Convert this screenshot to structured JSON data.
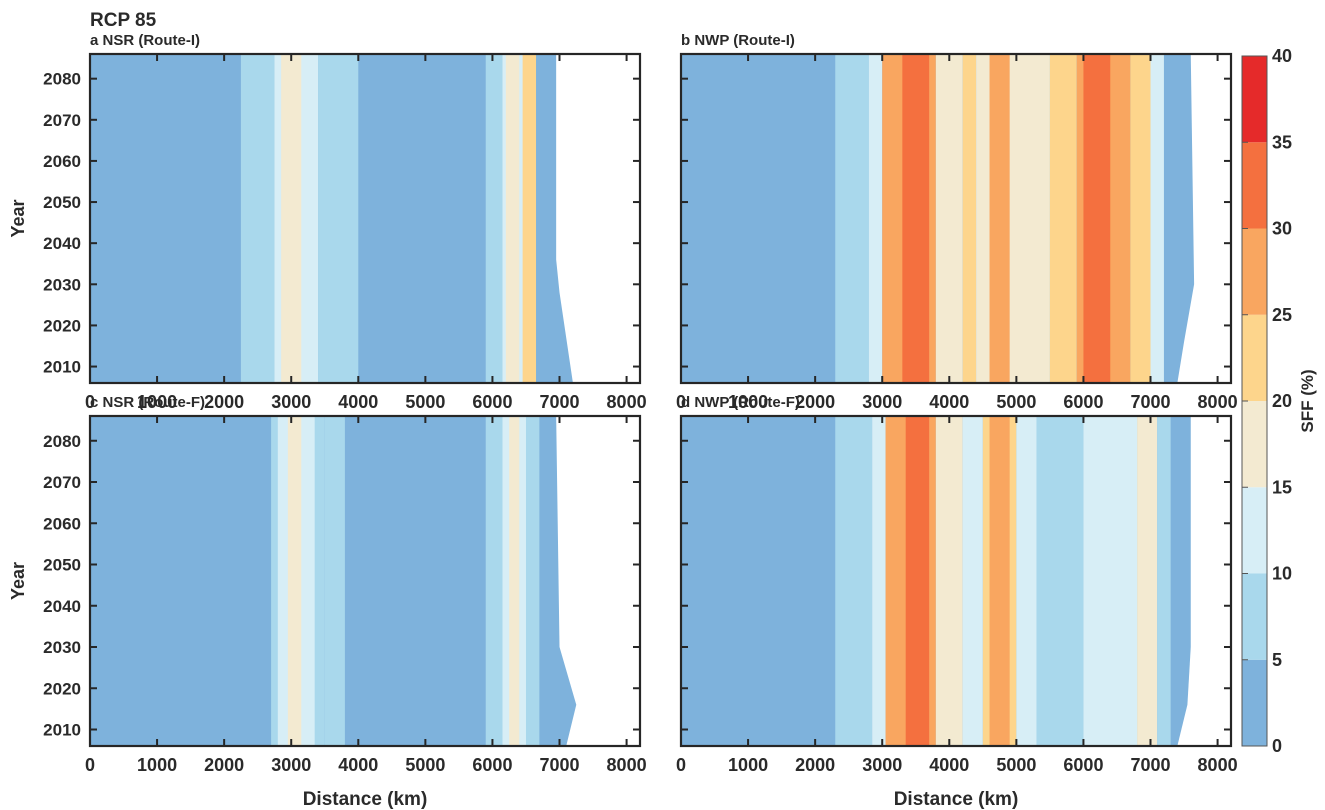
{
  "figure_title": "RCP 85",
  "colorbar": {
    "label": "SFF (%)",
    "levels": [
      0,
      5,
      10,
      15,
      20,
      25,
      30,
      35,
      40
    ],
    "colors": [
      "#7eb2dc",
      "#a9d8ec",
      "#d7eef6",
      "#f3ead1",
      "#fdd58c",
      "#f9a660",
      "#f4703f",
      "#e52a2a"
    ]
  },
  "chart_data": [
    {
      "type": "heatmap",
      "panel": "a",
      "title": "NSR (Route-I)",
      "xlabel": "",
      "ylabel": "Year",
      "xlim": [
        0,
        8200
      ],
      "ylim": [
        2006,
        2086
      ],
      "xticks": [
        0,
        1000,
        2000,
        3000,
        4000,
        5000,
        6000,
        7000,
        8000
      ],
      "yticks": [
        2010,
        2020,
        2030,
        2040,
        2050,
        2060,
        2070,
        2080
      ],
      "route_end_km": [
        [
          2006,
          7200
        ],
        [
          2028,
          7000
        ],
        [
          2036,
          6950
        ],
        [
          2086,
          6950
        ]
      ],
      "bands": [
        {
          "x": [
            2250,
            2750
          ],
          "v": 1
        },
        {
          "x": [
            2750,
            3400
          ],
          "v": 2
        },
        {
          "x": [
            2850,
            3150
          ],
          "v": 3
        },
        {
          "x": [
            3400,
            4000
          ],
          "v": 1
        },
        {
          "x": [
            5900,
            6150
          ],
          "v": 1
        },
        {
          "x": [
            6150,
            6500
          ],
          "v": 2
        },
        {
          "x": [
            6200,
            6400
          ],
          "v": 3
        },
        {
          "x": [
            6450,
            6650
          ],
          "v": 4
        }
      ]
    },
    {
      "type": "heatmap",
      "panel": "b",
      "title": "NWP (Route-I)",
      "xlabel": "",
      "ylabel": "",
      "xlim": [
        0,
        8200
      ],
      "ylim": [
        2006,
        2086
      ],
      "xticks": [
        0,
        1000,
        2000,
        3000,
        4000,
        5000,
        6000,
        7000,
        8000
      ],
      "yticks": [
        2010,
        2020,
        2030,
        2040,
        2050,
        2060,
        2070,
        2080
      ],
      "route_end_km": [
        [
          2006,
          7400
        ],
        [
          2016,
          7500
        ],
        [
          2030,
          7650
        ],
        [
          2086,
          7600
        ]
      ],
      "bands": [
        {
          "x": [
            2300,
            2800
          ],
          "v": 1
        },
        {
          "x": [
            2800,
            3000
          ],
          "v": 2
        },
        {
          "x": [
            3000,
            3800
          ],
          "v": 5
        },
        {
          "x": [
            3300,
            3700
          ],
          "v": 6
        },
        {
          "x": [
            3800,
            4200
          ],
          "v": 3
        },
        {
          "x": [
            4200,
            4400
          ],
          "v": 4
        },
        {
          "x": [
            4400,
            5500
          ],
          "v": 3
        },
        {
          "x": [
            4600,
            4900
          ],
          "v": 5
        },
        {
          "x": [
            5500,
            5900
          ],
          "v": 4
        },
        {
          "x": [
            5900,
            6700
          ],
          "v": 5
        },
        {
          "x": [
            6000,
            6400
          ],
          "v": 6
        },
        {
          "x": [
            6700,
            7000
          ],
          "v": 4
        },
        {
          "x": [
            7000,
            7200
          ],
          "v": 2
        }
      ]
    },
    {
      "type": "heatmap",
      "panel": "c",
      "title": "NSR (Route-F)",
      "xlabel": "Distance (km)",
      "ylabel": "Year",
      "xlim": [
        0,
        8200
      ],
      "ylim": [
        2006,
        2086
      ],
      "xticks": [
        0,
        1000,
        2000,
        3000,
        4000,
        5000,
        6000,
        7000,
        8000
      ],
      "yticks": [
        2010,
        2020,
        2030,
        2040,
        2050,
        2060,
        2070,
        2080
      ],
      "route_end_km": [
        [
          2006,
          7100
        ],
        [
          2016,
          7250
        ],
        [
          2030,
          7000
        ],
        [
          2086,
          6950
        ]
      ],
      "bands": [
        {
          "x": [
            2700,
            3500
          ],
          "v": 1
        },
        {
          "x": [
            2800,
            3350
          ],
          "v": 2
        },
        {
          "x": [
            2950,
            3150
          ],
          "v": 3
        },
        {
          "x": [
            3500,
            3800
          ],
          "v": 1
        },
        {
          "x": [
            5900,
            6700
          ],
          "v": 1
        },
        {
          "x": [
            6150,
            6500
          ],
          "v": 2
        },
        {
          "x": [
            6250,
            6400
          ],
          "v": 3
        }
      ]
    },
    {
      "type": "heatmap",
      "panel": "d",
      "title": "NWP (Route-F)",
      "xlabel": "Distance (km)",
      "ylabel": "",
      "xlim": [
        0,
        8200
      ],
      "ylim": [
        2006,
        2086
      ],
      "xticks": [
        0,
        1000,
        2000,
        3000,
        4000,
        5000,
        6000,
        7000,
        8000
      ],
      "yticks": [
        2010,
        2020,
        2030,
        2040,
        2050,
        2060,
        2070,
        2080
      ],
      "route_end_km": [
        [
          2006,
          7400
        ],
        [
          2016,
          7550
        ],
        [
          2030,
          7600
        ],
        [
          2086,
          7600
        ]
      ],
      "bands": [
        {
          "x": [
            2300,
            2850
          ],
          "v": 1
        },
        {
          "x": [
            2850,
            3050
          ],
          "v": 2
        },
        {
          "x": [
            3050,
            3800
          ],
          "v": 5
        },
        {
          "x": [
            3350,
            3700
          ],
          "v": 6
        },
        {
          "x": [
            3800,
            4200
          ],
          "v": 3
        },
        {
          "x": [
            4200,
            4500
          ],
          "v": 2
        },
        {
          "x": [
            4500,
            5000
          ],
          "v": 4
        },
        {
          "x": [
            4600,
            4900
          ],
          "v": 5
        },
        {
          "x": [
            5000,
            5300
          ],
          "v": 2
        },
        {
          "x": [
            5300,
            6000
          ],
          "v": 1
        },
        {
          "x": [
            6000,
            6800
          ],
          "v": 2
        },
        {
          "x": [
            6800,
            7100
          ],
          "v": 3
        },
        {
          "x": [
            7100,
            7300
          ],
          "v": 1
        }
      ]
    }
  ]
}
